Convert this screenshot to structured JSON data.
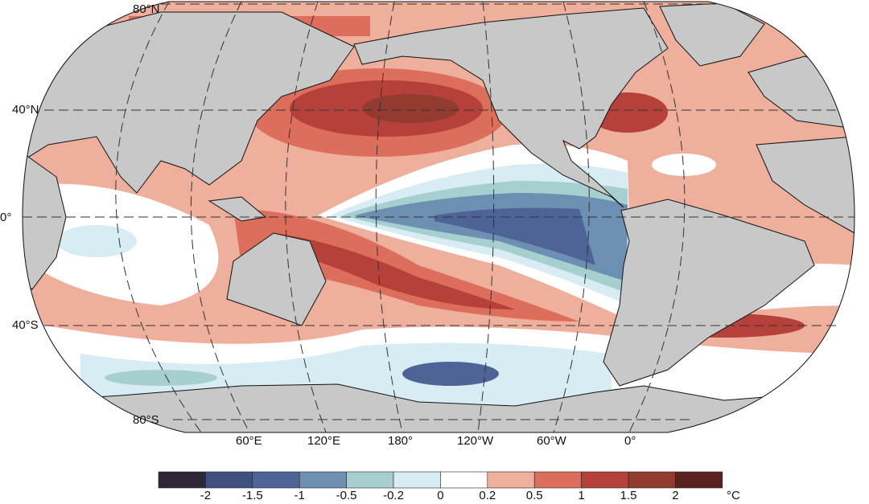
{
  "map": {
    "lat_labels": [
      "80°N",
      "40°N",
      "0°",
      "40°S",
      "80°S"
    ],
    "lon_labels": [
      "60°E",
      "120°E",
      "180°",
      "120°W",
      "60°W",
      "0°"
    ]
  },
  "colorbar": {
    "ticks": [
      "-2",
      "-1.5",
      "-1",
      "-0.5",
      "-0.2",
      "0",
      "0.2",
      "0.5",
      "1",
      "1.5",
      "2"
    ],
    "unit": "°C",
    "colors": [
      "#2e2638",
      "#3f4f7e",
      "#4f6496",
      "#6d8fb2",
      "#a8cfd0",
      "#d8ecf4",
      "#ffffff",
      "#eeaf9c",
      "#dd6e5c",
      "#b6413a",
      "#933a31",
      "#5a221e"
    ]
  },
  "colors": {
    "land": "#c8c8c8"
  }
}
